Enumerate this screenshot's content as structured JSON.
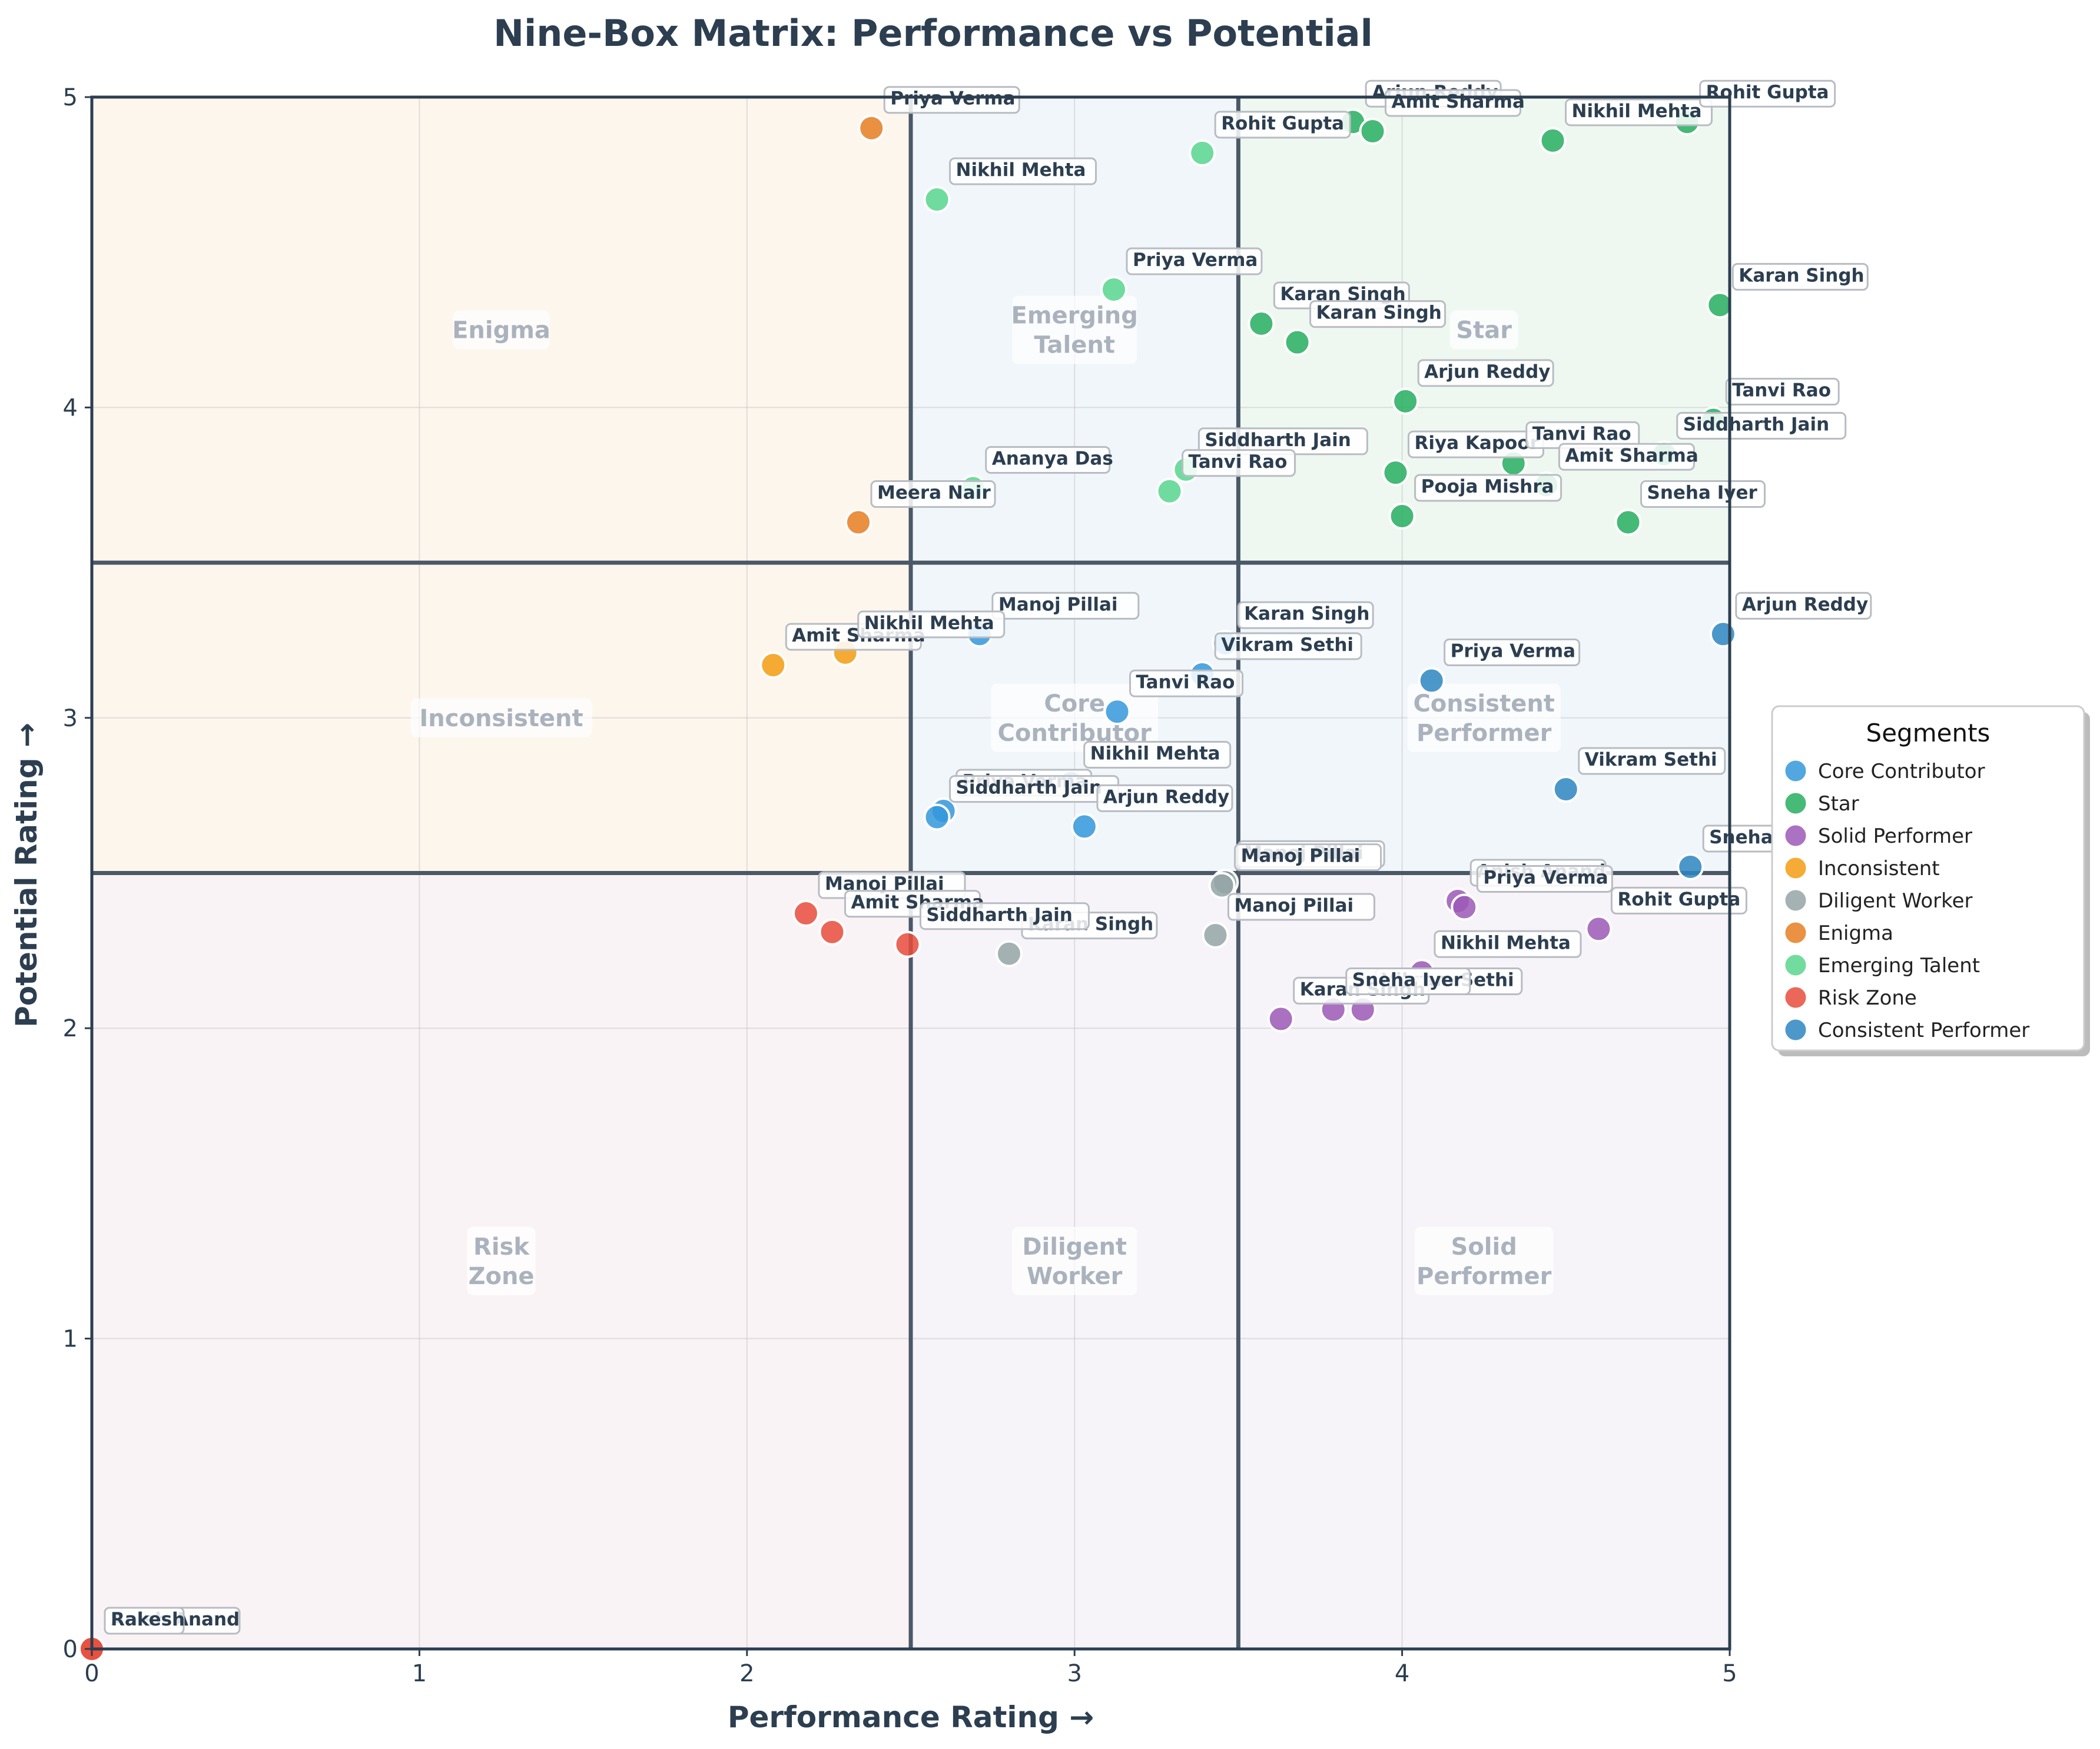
{
  "chart_data": {
    "type": "scatter",
    "title": "Nine-Box Matrix: Performance vs Potential",
    "xlabel": "Performance Rating →",
    "ylabel": "Potential Rating →",
    "xlim": [
      0,
      5
    ],
    "ylim": [
      0,
      5
    ],
    "xticks": [
      "0",
      "1",
      "2",
      "3",
      "4",
      "5"
    ],
    "yticks": [
      "0",
      "1",
      "2",
      "3",
      "4",
      "5"
    ],
    "grid": true,
    "legend_title": "Segments",
    "legend_position": "right",
    "colors": {
      "Core Contributor": "#3498db",
      "Star": "#27ae60",
      "Solid Performer": "#9b59b6",
      "Inconsistent": "#f39c12",
      "Diligent Worker": "#95a5a6",
      "Enigma": "#e67e22",
      "Emerging Talent": "#58d68d",
      "Risk Zone": "#e74c3c",
      "Consistent Performer": "#2e86c1"
    },
    "regions": [
      {
        "label": "Enigma",
        "fill": "#f5e6cc"
      },
      {
        "label": "Emerging\nTalent",
        "fill": "#d4e6f1"
      },
      {
        "label": "Star",
        "fill": "#cdebd8"
      },
      {
        "label": "Inconsistent",
        "fill": "#f5e6cc"
      },
      {
        "label": "Core\nContributor",
        "fill": "#d6e4f0"
      },
      {
        "label": "Consistent\nPerformer",
        "fill": "#d6e4f0"
      },
      {
        "label": "Risk\nZone",
        "fill": "#f0dde3"
      },
      {
        "label": "Diligent\nWorker",
        "fill": "#e6dcef"
      },
      {
        "label": "Solid\nPerformer",
        "fill": "#e6dcef"
      }
    ],
    "series": [
      {
        "name": "Core Contributor",
        "points": [
          {
            "x": 2.71,
            "y": 3.27,
            "label": "Manoj Pillai"
          },
          {
            "x": 3.46,
            "y": 3.24,
            "label": "Karan Singh"
          },
          {
            "x": 3.39,
            "y": 3.14,
            "label": "Vikram Sethi"
          },
          {
            "x": 3.13,
            "y": 3.02,
            "label": "Tanvi Rao"
          },
          {
            "x": 2.99,
            "y": 2.79,
            "label": "Nikhil Mehta"
          },
          {
            "x": 2.6,
            "y": 2.7,
            "label": "Priya Verma"
          },
          {
            "x": 2.58,
            "y": 2.68,
            "label": "Siddharth Jain"
          },
          {
            "x": 3.03,
            "y": 2.65,
            "label": "Arjun Reddy"
          }
        ]
      },
      {
        "name": "Star",
        "points": [
          {
            "x": 3.85,
            "y": 4.92,
            "label": "Arjun Reddy"
          },
          {
            "x": 3.91,
            "y": 4.89,
            "label": "Amit Sharma"
          },
          {
            "x": 4.46,
            "y": 4.86,
            "label": "Nikhil Mehta"
          },
          {
            "x": 4.87,
            "y": 4.92,
            "label": "Rohit Gupta"
          },
          {
            "x": 4.97,
            "y": 4.33,
            "label": "Karan Singh"
          },
          {
            "x": 3.57,
            "y": 4.27,
            "label": "Karan Singh"
          },
          {
            "x": 3.68,
            "y": 4.21,
            "label": "Karan Singh"
          },
          {
            "x": 4.01,
            "y": 4.02,
            "label": "Arjun Reddy"
          },
          {
            "x": 4.95,
            "y": 3.96,
            "label": "Tanvi Rao"
          },
          {
            "x": 4.8,
            "y": 3.85,
            "label": "Siddharth Jain"
          },
          {
            "x": 3.98,
            "y": 3.79,
            "label": "Riya Kapoor"
          },
          {
            "x": 4.34,
            "y": 3.82,
            "label": "Tanvi Rao"
          },
          {
            "x": 4.44,
            "y": 3.75,
            "label": "Amit Sharma"
          },
          {
            "x": 4.0,
            "y": 3.65,
            "label": "Pooja Mishra"
          },
          {
            "x": 4.69,
            "y": 3.63,
            "label": "Sneha Iyer"
          }
        ]
      },
      {
        "name": "Solid Performer",
        "points": [
          {
            "x": 4.17,
            "y": 2.41,
            "label": "Anish Anand"
          },
          {
            "x": 4.19,
            "y": 2.39,
            "label": "Priya Verma"
          },
          {
            "x": 4.6,
            "y": 2.32,
            "label": "Rohit Gupta"
          },
          {
            "x": 4.06,
            "y": 2.18,
            "label": "Nikhil Mehta"
          },
          {
            "x": 3.88,
            "y": 2.06,
            "label": "Vikram Sethi"
          },
          {
            "x": 3.63,
            "y": 2.03,
            "label": "Karan Singh"
          },
          {
            "x": 3.79,
            "y": 2.06,
            "label": "Sneha Iyer"
          }
        ]
      },
      {
        "name": "Inconsistent",
        "points": [
          {
            "x": 2.08,
            "y": 3.17,
            "label": "Amit Sharma"
          },
          {
            "x": 2.3,
            "y": 3.21,
            "label": "Nikhil Mehta"
          }
        ]
      },
      {
        "name": "Diligent Worker",
        "points": [
          {
            "x": 3.46,
            "y": 2.47,
            "label": "Manoj Pillai"
          },
          {
            "x": 3.45,
            "y": 2.46,
            "label": "Manoj Pillai"
          },
          {
            "x": 3.43,
            "y": 2.3,
            "label": "Manoj Pillai"
          },
          {
            "x": 2.8,
            "y": 2.24,
            "label": "Karan Singh"
          }
        ]
      },
      {
        "name": "Enigma",
        "points": [
          {
            "x": 2.38,
            "y": 4.9,
            "label": "Priya Verma"
          },
          {
            "x": 2.34,
            "y": 3.63,
            "label": "Meera Nair"
          }
        ]
      },
      {
        "name": "Emerging Talent",
        "points": [
          {
            "x": 2.58,
            "y": 4.67,
            "label": "Nikhil Mehta"
          },
          {
            "x": 3.39,
            "y": 4.82,
            "label": "Rohit Gupta"
          },
          {
            "x": 3.12,
            "y": 4.38,
            "label": "Priya Verma"
          },
          {
            "x": 2.69,
            "y": 3.74,
            "label": "Ananya Das"
          },
          {
            "x": 3.34,
            "y": 3.8,
            "label": "Siddharth Jain"
          },
          {
            "x": 3.29,
            "y": 3.73,
            "label": "Tanvi Rao"
          }
        ]
      },
      {
        "name": "Risk Zone",
        "points": [
          {
            "x": 2.18,
            "y": 2.37,
            "label": "Manoj Pillai"
          },
          {
            "x": 2.26,
            "y": 2.31,
            "label": "Amit Sharma"
          },
          {
            "x": 2.49,
            "y": 2.27,
            "label": "Siddharth Jain"
          },
          {
            "x": 0.0,
            "y": 0.0,
            "label": "Anish Anand"
          },
          {
            "x": 0.0,
            "y": 0.0,
            "label": "Rakesh"
          }
        ]
      },
      {
        "name": "Consistent Performer",
        "points": [
          {
            "x": 4.98,
            "y": 3.27,
            "label": "Arjun Reddy"
          },
          {
            "x": 4.09,
            "y": 3.12,
            "label": "Priya Verma"
          },
          {
            "x": 4.5,
            "y": 2.77,
            "label": "Vikram Sethi"
          },
          {
            "x": 4.88,
            "y": 2.52,
            "label": "Sneha Iyer"
          }
        ]
      }
    ]
  }
}
